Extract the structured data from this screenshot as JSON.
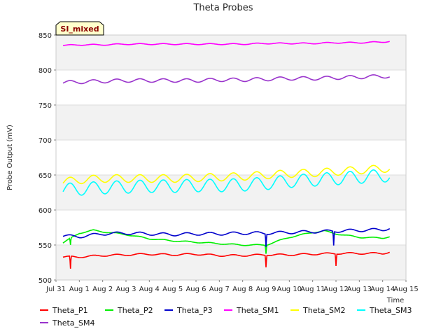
{
  "chart_data": {
    "type": "line",
    "title": "Theta Probes",
    "xlabel": "Time",
    "ylabel": "Probe Output (mV)",
    "badge": "SI_mixed",
    "ylim": [
      500,
      850
    ],
    "xlim": [
      0,
      15
    ],
    "yticks": [
      500,
      550,
      600,
      650,
      700,
      750,
      800,
      850
    ],
    "xtick_labels": [
      "Jul 31",
      "Aug 1",
      "Aug 2",
      "Aug 3",
      "Aug 4",
      "Aug 5",
      "Aug 6",
      "Aug 7",
      "Aug 8",
      "Aug 9",
      "Aug 10",
      "Aug 11",
      "Aug 12",
      "Aug 13",
      "Aug 14",
      "Aug 15"
    ],
    "grid": "horizontal bands",
    "legend_position": "bottom",
    "series": [
      {
        "name": "Theta_P1",
        "color": "#ff0000",
        "x": [
          0.3,
          1.0,
          2.0,
          3.0,
          4.0,
          5.0,
          6.0,
          7.0,
          8.0,
          9.0,
          10.0,
          11.0,
          12.0,
          13.0,
          14.0,
          14.3
        ],
        "values": [
          533,
          533,
          535,
          536,
          537,
          536,
          537,
          535,
          535,
          536,
          536,
          537,
          538,
          538,
          538,
          540
        ]
      },
      {
        "name": "Theta_P2",
        "color": "#00ee00",
        "x": [
          0.3,
          1.0,
          1.6,
          2.0,
          3.0,
          4.0,
          5.0,
          6.0,
          7.0,
          8.0,
          9.0,
          10.0,
          11.0,
          11.5,
          12.0,
          13.0,
          14.0,
          14.3
        ],
        "values": [
          553,
          567,
          571,
          569,
          565,
          559,
          556,
          554,
          552,
          550,
          550,
          561,
          568,
          570,
          566,
          561,
          560,
          562
        ]
      },
      {
        "name": "Theta_P3",
        "color": "#0000cc",
        "x": [
          0.3,
          1.0,
          2.0,
          3.0,
          4.0,
          5.0,
          6.0,
          7.0,
          8.0,
          9.0,
          10.0,
          11.0,
          12.0,
          13.0,
          14.0,
          14.3
        ],
        "values": [
          563,
          562,
          566,
          567,
          566,
          565,
          566,
          566,
          567,
          567,
          568,
          569,
          570,
          571,
          572,
          574
        ]
      },
      {
        "name": "Theta_SM1",
        "color": "#ff00ff",
        "x": [
          0.3,
          1.0,
          2.0,
          3.0,
          4.0,
          5.0,
          6.0,
          7.0,
          8.0,
          9.0,
          10.0,
          11.0,
          12.0,
          13.0,
          14.0,
          14.3
        ],
        "values": [
          835,
          836,
          836,
          837,
          837,
          837,
          837,
          837,
          837,
          838,
          838,
          838,
          839,
          839,
          840,
          841
        ]
      },
      {
        "name": "Theta_SM2",
        "color": "#ffff00",
        "x": [
          0.3,
          1.0,
          2.0,
          3.0,
          4.0,
          5.0,
          6.0,
          7.0,
          8.0,
          9.0,
          10.0,
          11.0,
          12.0,
          13.0,
          14.0,
          14.3
        ],
        "values": [
          640,
          643,
          645,
          645,
          645,
          645,
          646,
          647,
          648,
          650,
          652,
          653,
          655,
          657,
          659,
          660
        ]
      },
      {
        "name": "Theta_SM3",
        "color": "#00ffff",
        "x": [
          0.3,
          1.0,
          2.0,
          3.0,
          4.0,
          5.0,
          6.0,
          7.0,
          8.0,
          9.0,
          10.0,
          11.0,
          12.0,
          13.0,
          14.0,
          14.3
        ],
        "values": [
          629,
          630,
          632,
          633,
          634,
          634,
          635,
          635,
          636,
          638,
          641,
          643,
          645,
          647,
          649,
          649
        ]
      },
      {
        "name": "Theta_SM4",
        "color": "#9933cc",
        "x": [
          0.3,
          1.0,
          2.0,
          3.0,
          4.0,
          5.0,
          6.0,
          7.0,
          8.0,
          9.0,
          10.0,
          11.0,
          12.0,
          13.0,
          14.0,
          14.3
        ],
        "values": [
          782,
          783,
          784,
          785,
          785,
          785,
          785,
          786,
          786,
          787,
          788,
          788,
          789,
          790,
          791,
          791
        ]
      }
    ]
  }
}
